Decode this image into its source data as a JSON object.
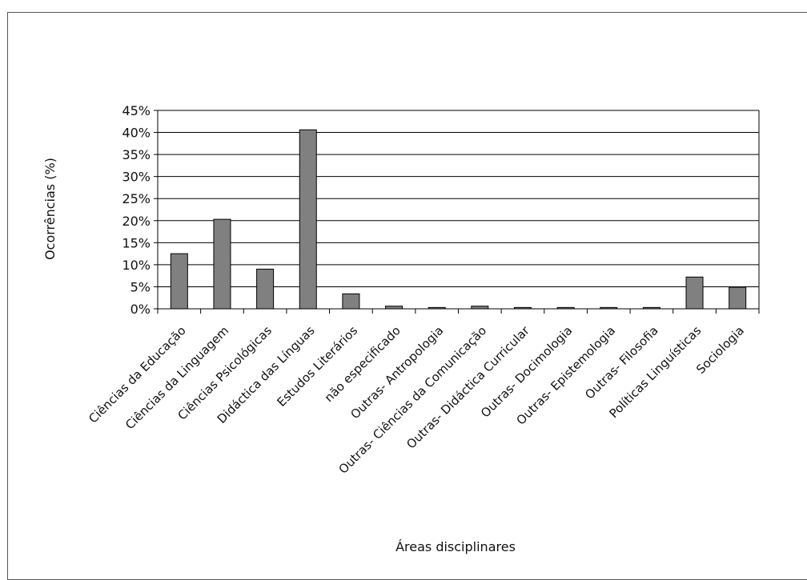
{
  "chart_data": {
    "type": "bar",
    "title": "",
    "xlabel": "Áreas disciplinares",
    "ylabel": "Ocorrências (%)",
    "ylim": [
      0,
      45
    ],
    "y_ticks": [
      0,
      5,
      10,
      15,
      20,
      25,
      30,
      35,
      40,
      45
    ],
    "y_tick_labels": [
      "0%",
      "5%",
      "10%",
      "15%",
      "20%",
      "25%",
      "30%",
      "35%",
      "40%",
      "45%"
    ],
    "grid": true,
    "legend": "none",
    "categories": [
      "Ciências da Educação",
      "Ciências da Linguagem",
      "Ciências Psicológicas",
      "Didáctica das Línguas",
      "Estudos Literários",
      "não especificado",
      "Outras- Antropologia",
      "Outras- Ciências da Comunicação",
      "Outras- Didáctica Curricular",
      "Outras- Docimologia",
      "Outras- Epistemologia",
      "Outras- Filosofia",
      "Políticas Linguísticas",
      "Sociologia"
    ],
    "values": [
      12.5,
      20.3,
      9.0,
      40.6,
      3.4,
      0.6,
      0.3,
      0.6,
      0.3,
      0.3,
      0.3,
      0.3,
      7.2,
      4.9
    ],
    "colors": {
      "bar": "#808080",
      "bar_stroke": "#000000",
      "grid": "#000000"
    }
  }
}
